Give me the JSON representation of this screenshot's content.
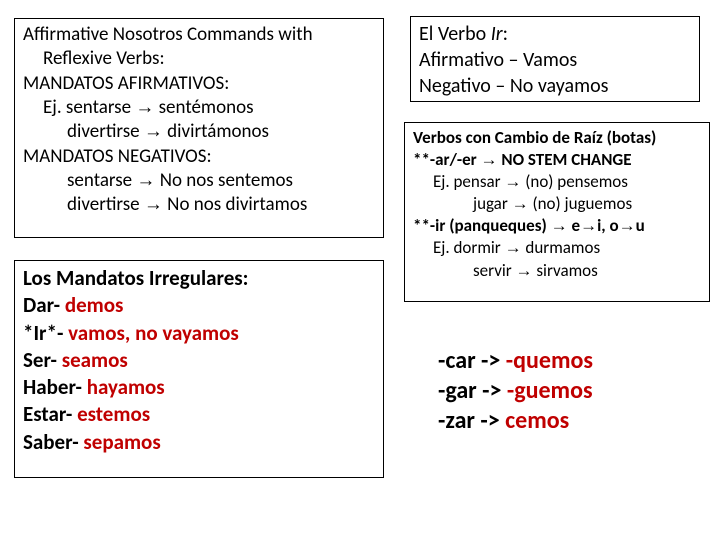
{
  "box1": {
    "l1": "Affirmative Nosotros Commands with",
    "l2": "Reflexive Verbs:",
    "l3": "MANDATOS AFIRMATIVOS:",
    "l4a": "Ej. sentarse ",
    "l4b": " sentémonos",
    "l5a": "divertirse ",
    "l5b": " divirtámonos",
    "l6": "MANDATOS NEGATIVOS:",
    "l7a": "sentarse ",
    "l7b": " No nos sentemos",
    "l8a": "divertirse ",
    "l8b": " No nos divirtamos"
  },
  "box2": {
    "title": "Los Mandatos Irregulares:",
    "r1a": "Dar- ",
    "r1b": "demos",
    "r2a": "*Ir*- ",
    "r2b": "vamos, no vayamos",
    "r3a": "Ser- ",
    "r3b": "seamos",
    "r4a": "Haber- ",
    "r4b": "hayamos",
    "r5a": "Estar- ",
    "r5b": "estemos",
    "r6a": "Saber- ",
    "r6b": "sepamos"
  },
  "box3": {
    "l1a": "El Verbo ",
    "l1b": "Ir",
    "l1c": ":",
    "l2": "Afirmativo – Vamos",
    "l3": "Negativo – No vayamos"
  },
  "box4": {
    "l1": "Verbos con Cambio de Raíz (botas)",
    "l2a": "**-ar/-er ",
    "l2b": " NO STEM CHANGE",
    "l3a": "Ej. pensar ",
    "l3b": " (no) pensemos",
    "l4a": "jugar ",
    "l4b": " (no) juguemos",
    "l5a": "**-ir (panqueques) ",
    "l5b": " e",
    "l5c": "i, o",
    "l5d": "u",
    "l6a": "Ej. dormir ",
    "l6b": " durmamos",
    "l7a": "servir ",
    "l7b": " sirvamos"
  },
  "box5": {
    "l1a": "-car -> ",
    "l1b": "-quemos",
    "l2a": "-gar -> ",
    "l2b": "-guemos",
    "l3a": "-zar -> ",
    "l3b": "cemos"
  },
  "arrow": "→"
}
